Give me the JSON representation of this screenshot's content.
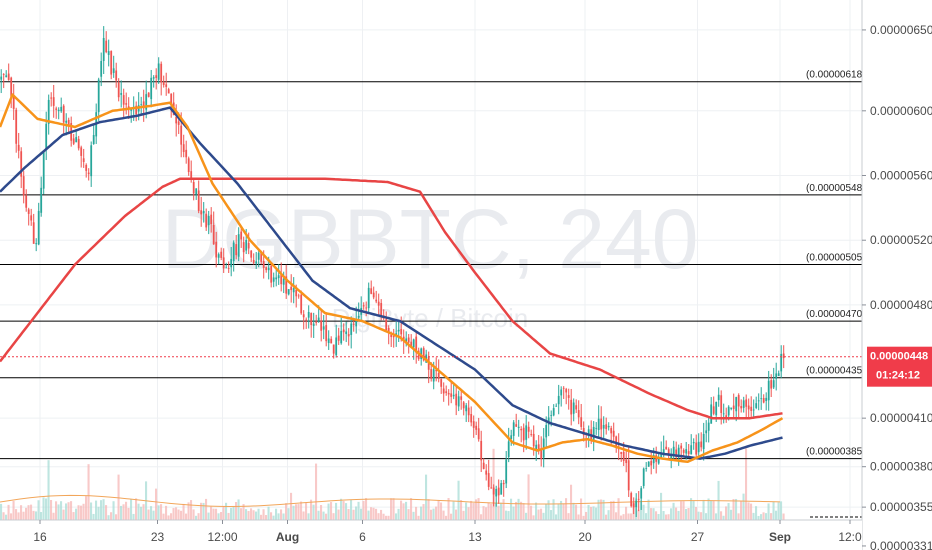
{
  "watermark": {
    "symbol": "DGBBTC, 240",
    "name": "DigiByte / Bitcoin"
  },
  "price_tag": {
    "value": "0.00000448",
    "countdown": "01:24:12",
    "color": "#f03c4a"
  },
  "chart_data": {
    "type": "candlestick",
    "y_axis": {
      "range": [
        3.285e-06,
        6.685e-06
      ],
      "tick_labels": [
        "0.00000650",
        "0.00000600",
        "0.00000560",
        "0.00000520",
        "0.00000480",
        "0.00000448",
        "0.00000410",
        "0.00000380",
        "0.00000355",
        "0.00000331"
      ],
      "tick_values": [
        6.5e-06,
        6e-06,
        5.6e-06,
        5.2e-06,
        4.8e-06,
        4.48e-06,
        4.1e-06,
        3.8e-06,
        3.55e-06,
        3.31e-06
      ]
    },
    "x_axis": {
      "labels": [
        "16",
        "23",
        "12:00",
        "Aug",
        "6",
        "13",
        "20",
        "27",
        "Sep",
        "12:0"
      ],
      "label_bars": [
        16,
        63,
        89,
        115,
        145,
        190,
        234,
        279,
        312,
        340
      ]
    },
    "fib_levels": [
      {
        "label": "(0.00000618)",
        "value": 6.18e-06
      },
      {
        "label": "(0.00000548)",
        "value": 5.48e-06
      },
      {
        "label": "(0.00000505)",
        "value": 5.05e-06
      },
      {
        "label": "(0.00000470)",
        "value": 4.7e-06
      },
      {
        "label": "(0.00000435)",
        "value": 4.35e-06
      },
      {
        "label": "(0.00000385)",
        "value": 3.85e-06
      }
    ],
    "close_path": [
      [
        0,
        6.2e-06
      ],
      [
        4,
        6.12e-06
      ],
      [
        9,
        5.45e-06
      ],
      [
        14,
        5.15e-06
      ],
      [
        19,
        6.1e-06
      ],
      [
        27,
        5.9e-06
      ],
      [
        35,
        5.65e-06
      ],
      [
        41,
        6.4e-06
      ],
      [
        48,
        6.1e-06
      ],
      [
        56,
        6e-06
      ],
      [
        62,
        6.25e-06
      ],
      [
        66,
        6.2e-06
      ],
      [
        71,
        5.9e-06
      ],
      [
        77,
        5.5e-06
      ],
      [
        83,
        5.3e-06
      ],
      [
        89,
        5e-06
      ],
      [
        95,
        5.2e-06
      ],
      [
        101,
        5.1e-06
      ],
      [
        107,
        5e-06
      ],
      [
        113,
        4.95e-06
      ],
      [
        119,
        4.8e-06
      ],
      [
        126,
        4.7e-06
      ],
      [
        133,
        4.55e-06
      ],
      [
        140,
        4.65e-06
      ],
      [
        147,
        4.85e-06
      ],
      [
        153,
        4.7e-06
      ],
      [
        160,
        4.6e-06
      ],
      [
        167,
        4.5e-06
      ],
      [
        173,
        4.38e-06
      ],
      [
        180,
        4.25e-06
      ],
      [
        186,
        4.2e-06
      ],
      [
        190,
        4e-06
      ],
      [
        193,
        3.75e-06
      ],
      [
        197,
        3.6e-06
      ],
      [
        201,
        3.7e-06
      ],
      [
        205,
        4.1e-06
      ],
      [
        210,
        4e-06
      ],
      [
        216,
        3.9e-06
      ],
      [
        220,
        4.1e-06
      ],
      [
        224,
        4.3e-06
      ],
      [
        229,
        4.15e-06
      ],
      [
        234,
        4e-06
      ],
      [
        240,
        4.05e-06
      ],
      [
        246,
        3.95e-06
      ],
      [
        250,
        3.8e-06
      ],
      [
        253,
        3.5e-06
      ],
      [
        257,
        3.75e-06
      ],
      [
        262,
        3.85e-06
      ],
      [
        267,
        3.9e-06
      ],
      [
        273,
        3.88e-06
      ],
      [
        279,
        3.9e-06
      ],
      [
        283,
        4.1e-06
      ],
      [
        287,
        4.2e-06
      ],
      [
        291,
        4.15e-06
      ],
      [
        295,
        4.2e-06
      ],
      [
        300,
        4.15e-06
      ],
      [
        305,
        4.25e-06
      ],
      [
        309,
        4.35e-06
      ],
      [
        313,
        4.48e-06
      ]
    ],
    "ma_fast": [
      [
        0,
        5.9e-06
      ],
      [
        5,
        6.1e-06
      ],
      [
        15,
        5.95e-06
      ],
      [
        30,
        5.9e-06
      ],
      [
        45,
        6e-06
      ],
      [
        60,
        6.03e-06
      ],
      [
        68,
        6.05e-06
      ],
      [
        75,
        5.9e-06
      ],
      [
        85,
        5.55e-06
      ],
      [
        100,
        5.2e-06
      ],
      [
        115,
        4.95e-06
      ],
      [
        130,
        4.75e-06
      ],
      [
        145,
        4.7e-06
      ],
      [
        160,
        4.6e-06
      ],
      [
        175,
        4.4e-06
      ],
      [
        190,
        4.2e-06
      ],
      [
        205,
        3.95e-06
      ],
      [
        215,
        3.9e-06
      ],
      [
        225,
        3.95e-06
      ],
      [
        235,
        3.97e-06
      ],
      [
        245,
        3.93e-06
      ],
      [
        255,
        3.88e-06
      ],
      [
        265,
        3.85e-06
      ],
      [
        275,
        3.83e-06
      ],
      [
        285,
        3.9e-06
      ],
      [
        295,
        3.95e-06
      ],
      [
        305,
        4.03e-06
      ],
      [
        313,
        4.1e-06
      ]
    ],
    "ma_mid": [
      [
        0,
        5.5e-06
      ],
      [
        10,
        5.65e-06
      ],
      [
        25,
        5.85e-06
      ],
      [
        40,
        5.93e-06
      ],
      [
        55,
        5.97e-06
      ],
      [
        68,
        6.02e-06
      ],
      [
        80,
        5.8e-06
      ],
      [
        95,
        5.55e-06
      ],
      [
        110,
        5.25e-06
      ],
      [
        125,
        4.95e-06
      ],
      [
        140,
        4.78e-06
      ],
      [
        160,
        4.7e-06
      ],
      [
        175,
        4.55e-06
      ],
      [
        190,
        4.4e-06
      ],
      [
        205,
        4.18e-06
      ],
      [
        220,
        4.07e-06
      ],
      [
        235,
        4e-06
      ],
      [
        250,
        3.93e-06
      ],
      [
        265,
        3.88e-06
      ],
      [
        280,
        3.85e-06
      ],
      [
        290,
        3.88e-06
      ],
      [
        300,
        3.93e-06
      ],
      [
        313,
        3.98e-06
      ]
    ],
    "ma_slow": [
      [
        0,
        4.45e-06
      ],
      [
        15,
        4.75e-06
      ],
      [
        30,
        5.05e-06
      ],
      [
        50,
        5.35e-06
      ],
      [
        65,
        5.53e-06
      ],
      [
        72,
        5.58e-06
      ],
      [
        100,
        5.58e-06
      ],
      [
        130,
        5.58e-06
      ],
      [
        155,
        5.56e-06
      ],
      [
        168,
        5.5e-06
      ],
      [
        178,
        5.25e-06
      ],
      [
        190,
        5e-06
      ],
      [
        205,
        4.7e-06
      ],
      [
        220,
        4.5e-06
      ],
      [
        240,
        4.4e-06
      ],
      [
        260,
        4.25e-06
      ],
      [
        275,
        4.15e-06
      ],
      [
        285,
        4.1e-06
      ],
      [
        300,
        4.1e-06
      ],
      [
        313,
        4.13e-06
      ]
    ],
    "colors": {
      "up": "#26a69a",
      "down": "#ef5350",
      "ma_fast": "#f7931a",
      "ma_mid": "#2e4a8c",
      "ma_slow": "#e84545",
      "fib": "#000000",
      "current": "#f03c4a"
    }
  }
}
